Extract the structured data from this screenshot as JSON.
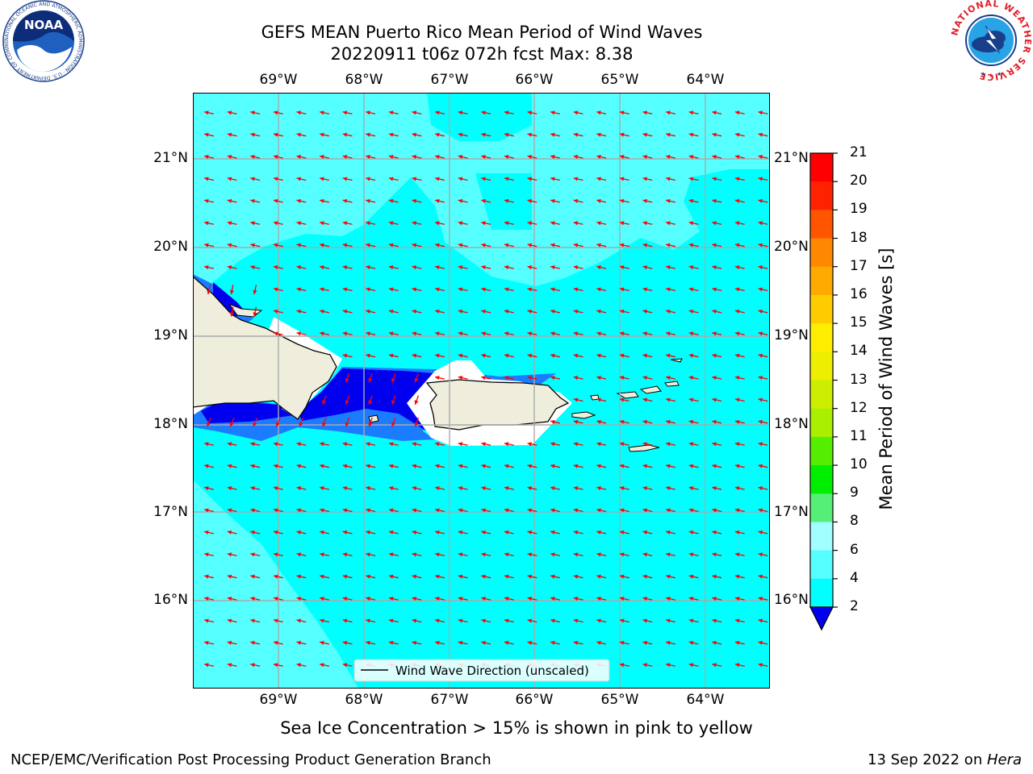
{
  "header": {
    "title_line1": "GEFS MEAN Puerto Rico Mean Period of Wind Waves",
    "title_line2": "20220911 t06z 072h fcst   Max: 8.38"
  },
  "logos": {
    "noaa_text": "NOAA",
    "noaa_ring": "NATIONAL OCEANIC AND ATMOSPHERIC ADMINISTRATION · U.S. DEPARTMENT OF COMMERCE ·",
    "nws_ring": "NATIONAL WEATHER SERVICE"
  },
  "map": {
    "lon_labels": [
      "69°W",
      "68°W",
      "67°W",
      "66°W",
      "65°W",
      "64°W"
    ],
    "lat_labels": [
      "21°N",
      "20°N",
      "19°N",
      "18°N",
      "17°N",
      "16°N"
    ],
    "legend_label": "Wind Wave Direction (unscaled)",
    "fill_colors": {
      "p2_4": "#0000ee",
      "p4_6": "#1c7cff",
      "p6_8": "#00ffff",
      "p8_9": "#55ffff",
      "land": "#efeedd",
      "pink_yellow": "#ffffff"
    },
    "arrow_color": "#ff0000"
  },
  "colorbar": {
    "label": "Mean Period of Wind Waves [s]",
    "ticks": [
      "2",
      "4",
      "6",
      "8",
      "9",
      "10",
      "11",
      "12",
      "13",
      "14",
      "15",
      "16",
      "17",
      "18",
      "19",
      "20",
      "21"
    ],
    "colors": [
      "#0000ee",
      "#1c7cff",
      "#00ffff",
      "#55ffff",
      "#a0ffff",
      "#55ee77",
      "#00ee00",
      "#55ee00",
      "#aaee00",
      "#ccee00",
      "#eeee00",
      "#ffee00",
      "#ffcc00",
      "#ffaa00",
      "#ff8800",
      "#ff5500",
      "#ff2200",
      "#ff0000"
    ]
  },
  "footer": {
    "note": "Sea Ice Concentration > 15% is shown in pink to yellow",
    "left": "NCEP/EMC/Verification Post Processing Product Generation Branch",
    "date": "13 Sep 2022 on ",
    "host": "Hera"
  }
}
